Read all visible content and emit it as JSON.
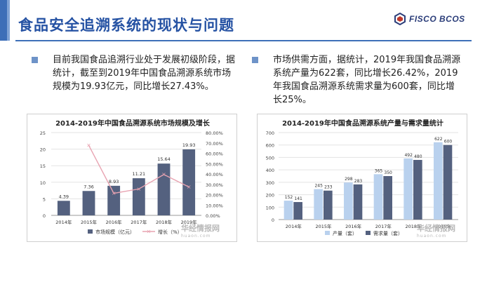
{
  "header": {
    "title": "食品安全追溯系统的现状与问题",
    "logo_text": "FISCO BCOS"
  },
  "bullets": {
    "left": "目前我国食品追溯行业处于发展初级阶段，据统计，截至到2019年中国食品溯源系统市场规模为19.93亿元，同比增长27.43%。",
    "right": "市场供需方面，据统计，2019年我国食品溯源系统产量为622套，同比增长26.42%，2019年我国食品溯源系统需求量为600套，同比增长25%。"
  },
  "watermark": {
    "main": "华经情报网",
    "sub": "huaon.com"
  },
  "colors": {
    "accent": "#3d6fb8",
    "title": "#2552a3",
    "bar_dark": "#54617f",
    "bar_light": "#b9d1ee",
    "line": "#e8a3b1"
  },
  "chart_data": [
    {
      "type": "bar",
      "title": "2014-2019年中国食品溯源系统市场规模及增长",
      "categories": [
        "2014年",
        "2015年",
        "2016年",
        "2017年",
        "2018年",
        "2019年"
      ],
      "series": [
        {
          "name": "市场规模（亿元）",
          "type": "bar",
          "axis": "left",
          "values": [
            4.39,
            7.36,
            8.93,
            11.21,
            15.64,
            19.93
          ],
          "labels": [
            "4.39",
            "7.36",
            "8.93",
            "11.21",
            "15.64",
            "19.93"
          ]
        },
        {
          "name": "增长（%）",
          "type": "line",
          "axis": "right",
          "values": [
            null,
            67.7,
            21.3,
            25.5,
            39.5,
            27.43
          ]
        }
      ],
      "ylim": [
        0,
        25
      ],
      "yticks": [
        "0",
        "5",
        "10",
        "15",
        "20",
        "25"
      ],
      "y2lim": [
        0,
        80
      ],
      "y2ticks": [
        "0.00%",
        "10.00%",
        "20.00%",
        "30.00%",
        "40.00%",
        "50.00%",
        "60.00%",
        "70.00%",
        "80.00%"
      ],
      "legend": "bottom"
    },
    {
      "type": "bar",
      "title": "2014-2019年中国食品溯源系统产量与需求量统计",
      "categories": [
        "2014年",
        "2015年",
        "2016年",
        "2017年",
        "2018年",
        "2019年"
      ],
      "series": [
        {
          "name": "产量（套）",
          "values": [
            152,
            245,
            298,
            365,
            492,
            622
          ]
        },
        {
          "name": "需求量（套）",
          "values": [
            141,
            233,
            283,
            350,
            480,
            600
          ]
        }
      ],
      "ylim": [
        0,
        700
      ],
      "yticks": [
        "0",
        "100",
        "200",
        "300",
        "400",
        "500",
        "600",
        "700"
      ],
      "legend": "bottom"
    }
  ]
}
